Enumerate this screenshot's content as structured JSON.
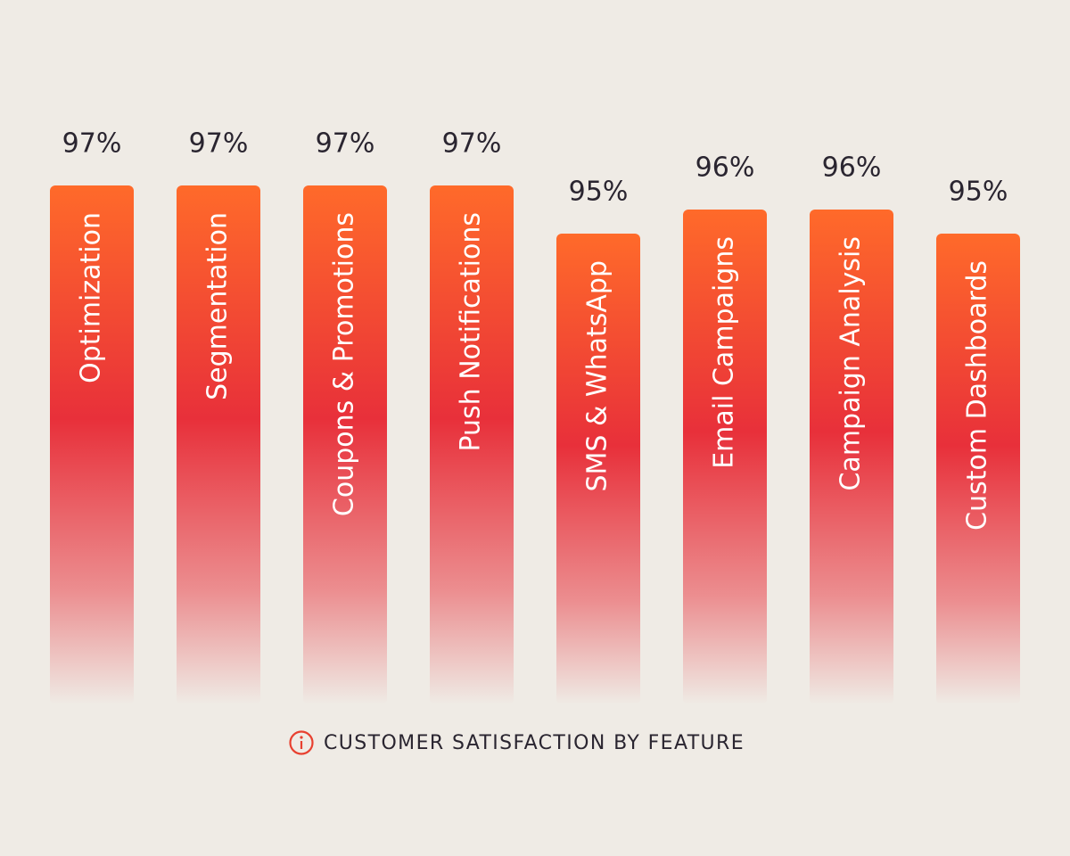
{
  "chart_data": {
    "type": "bar",
    "title": "CUSTOMER SATISFACTION BY FEATURE",
    "categories": [
      "Optimization",
      "Segmentation",
      "Coupons & Promotions",
      "Push Notifications",
      "SMS & WhatsApp",
      "Email Campaigns",
      "Campaign Analysis",
      "Custom Dashboards"
    ],
    "values": [
      97,
      97,
      97,
      97,
      95,
      96,
      96,
      95
    ],
    "value_labels": [
      "97%",
      "97%",
      "97%",
      "97%",
      "95%",
      "96%",
      "96%",
      "95%"
    ],
    "color": "#e8303a"
  }
}
